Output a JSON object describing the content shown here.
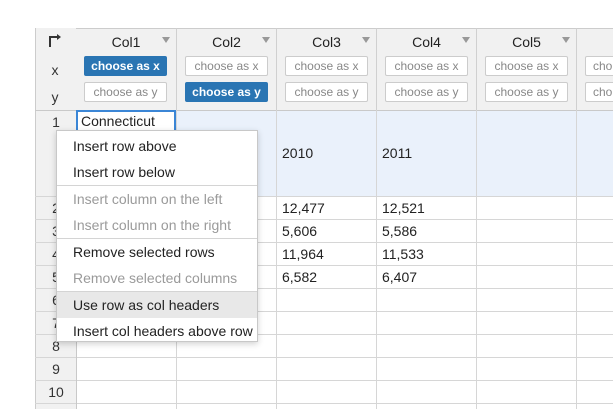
{
  "columns": [
    {
      "name": "Col1",
      "x_label": "choose as x",
      "y_label": "choose as y",
      "x_active": true,
      "y_active": false
    },
    {
      "name": "Col2",
      "x_label": "choose as x",
      "y_label": "choose as y",
      "x_active": false,
      "y_active": true
    },
    {
      "name": "Col3",
      "x_label": "choose as x",
      "y_label": "choose as y",
      "x_active": false,
      "y_active": false
    },
    {
      "name": "Col4",
      "x_label": "choose as x",
      "y_label": "choose as y",
      "x_active": false,
      "y_active": false
    },
    {
      "name": "Col5",
      "x_label": "choose as x",
      "y_label": "choose as y",
      "x_active": false,
      "y_active": false
    },
    {
      "name": "",
      "x_label": "cho",
      "y_label": "cho",
      "x_active": false,
      "y_active": false
    }
  ],
  "axis_labels": {
    "x": "x",
    "y": "y"
  },
  "row_numbers": [
    "1",
    "2",
    "3",
    "4",
    "5",
    "6",
    "7",
    "8",
    "9",
    "10"
  ],
  "editing_cell": "Connecticut",
  "cells": {
    "row1": [
      "2010",
      "2011"
    ],
    "row2": [
      "12,477",
      "12,521"
    ],
    "row3": [
      "5,606",
      "5,586"
    ],
    "row4": [
      "11,964",
      "11,533"
    ],
    "row5": [
      "6,582",
      "6,407"
    ]
  },
  "context_menu": {
    "insert_row_above": "Insert row above",
    "insert_row_below": "Insert row below",
    "insert_col_left": "Insert column on the left",
    "insert_col_right": "Insert column on the right",
    "remove_rows": "Remove selected rows",
    "remove_cols": "Remove selected columns",
    "use_row_as_headers": "Use row as col headers",
    "insert_col_headers": "Insert col headers above row"
  },
  "colors": {
    "accent": "#2a75b3",
    "row_highlight": "#eaf1fb",
    "header_bg": "#f1f1f1"
  }
}
